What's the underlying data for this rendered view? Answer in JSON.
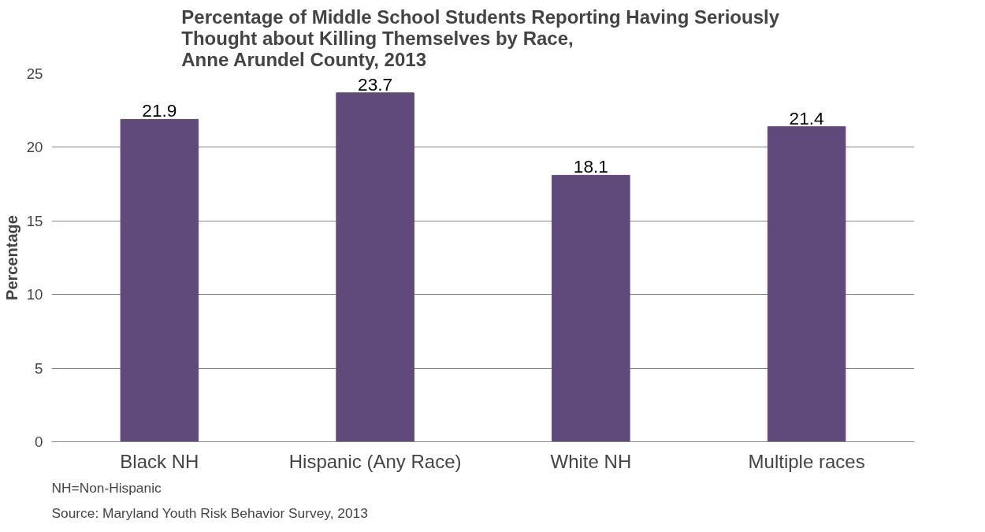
{
  "chart_data": {
    "type": "bar",
    "title": "Percentage of  Middle School Students Reporting Having Seriously\nThought about Killing Themselves by Race,\nAnne Arundel County, 2013",
    "ylabel": "Percentage",
    "categories": [
      "Black NH",
      "Hispanic (Any Race)",
      "White NH",
      "Multiple races"
    ],
    "values": [
      21.9,
      23.7,
      18.1,
      21.4
    ],
    "color": "#604a7b",
    "ylim": [
      0,
      25
    ],
    "yticks": [
      0,
      5,
      10,
      15,
      20,
      25
    ],
    "grid": "y",
    "data_labels": true,
    "annotations": [
      "NH=Non-Hispanic",
      "Source: Maryland Youth Risk Behavior Survey, 2013"
    ]
  }
}
